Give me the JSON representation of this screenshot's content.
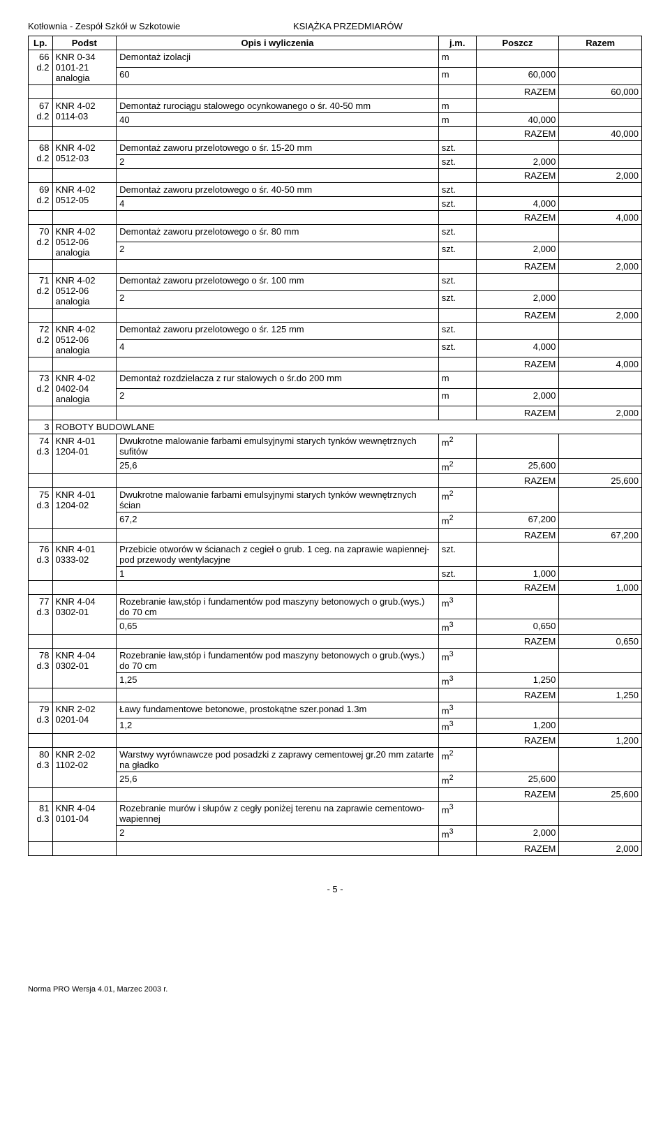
{
  "header": {
    "left": "Kotłownia - Zespół Szkół w Szkotowie",
    "right": "KSIĄŻKA PRZEDMIARÓW"
  },
  "columns": {
    "lp": "Lp.",
    "podst": "Podst",
    "opis": "Opis i wyliczenia",
    "jm": "j.m.",
    "poszcz": "Poszcz",
    "razem": "Razem"
  },
  "razem_label": "RAZEM",
  "section": {
    "num": "3",
    "title": "ROBOTY BUDOWLANE"
  },
  "rows": [
    {
      "lp": "66",
      "lp2": "d.2",
      "podst1": "KNR 0-34",
      "podst2": "0101-21",
      "podst3": "analogia",
      "opis": "Demontaż izolacji",
      "jm": "m",
      "calc_opis": "60",
      "calc_jm": "m",
      "calc_val": "60,000",
      "razem": "60,000"
    },
    {
      "lp": "67",
      "lp2": "d.2",
      "podst1": "KNR 4-02",
      "podst2": "0114-03",
      "opis": "Demontaż rurociągu stalowego ocynkowanego o śr. 40-50 mm",
      "jm": "m",
      "calc_opis": "40",
      "calc_jm": "m",
      "calc_val": "40,000",
      "razem": "40,000"
    },
    {
      "lp": "68",
      "lp2": "d.2",
      "podst1": "KNR 4-02",
      "podst2": "0512-03",
      "opis": "Demontaż zaworu przelotowego o śr. 15-20 mm",
      "jm": "szt.",
      "calc_opis": "2",
      "calc_jm": "szt.",
      "calc_val": "2,000",
      "razem": "2,000"
    },
    {
      "lp": "69",
      "lp2": "d.2",
      "podst1": "KNR 4-02",
      "podst2": "0512-05",
      "opis": "Demontaż zaworu przelotowego o śr. 40-50 mm",
      "jm": "szt.",
      "calc_opis": "4",
      "calc_jm": "szt.",
      "calc_val": "4,000",
      "razem": "4,000"
    },
    {
      "lp": "70",
      "lp2": "d.2",
      "podst1": "KNR 4-02",
      "podst2": "0512-06",
      "podst3": "analogia",
      "opis": "Demontaż zaworu przelotowego o śr. 80 mm",
      "jm": "szt.",
      "calc_opis": "2",
      "calc_jm": "szt.",
      "calc_val": "2,000",
      "razem": "2,000"
    },
    {
      "lp": "71",
      "lp2": "d.2",
      "podst1": "KNR 4-02",
      "podst2": "0512-06",
      "podst3": "analogia",
      "opis": "Demontaż zaworu przelotowego o śr. 100 mm",
      "jm": "szt.",
      "calc_opis": "2",
      "calc_jm": "szt.",
      "calc_val": "2,000",
      "razem": "2,000"
    },
    {
      "lp": "72",
      "lp2": "d.2",
      "podst1": "KNR 4-02",
      "podst2": "0512-06",
      "podst3": "analogia",
      "opis": "Demontaż zaworu przelotowego o śr. 125 mm",
      "jm": "szt.",
      "calc_opis": "4",
      "calc_jm": "szt.",
      "calc_val": "4,000",
      "razem": "4,000"
    },
    {
      "lp": "73",
      "lp2": "d.2",
      "podst1": "KNR 4-02",
      "podst2": "0402-04",
      "podst3": "analogia",
      "opis": "Demontaż rozdzielacza z rur stalowych o śr.do 200 mm",
      "jm": "m",
      "calc_opis": "2",
      "calc_jm": "m",
      "calc_val": "2,000",
      "razem": "2,000"
    },
    {
      "lp": "74",
      "lp2": "d.3",
      "podst1": "KNR 4-01",
      "podst2": "1204-01",
      "opis": "Dwukrotne malowanie farbami emulsyjnymi starych tynków wewnętrznych sufitów",
      "jm": "m2",
      "sup": true,
      "calc_opis": "25,6",
      "calc_jm": "m2",
      "calc_val": "25,600",
      "razem": "25,600",
      "section_before": true
    },
    {
      "lp": "75",
      "lp2": "d.3",
      "podst1": "KNR 4-01",
      "podst2": "1204-02",
      "opis": "Dwukrotne malowanie farbami emulsyjnymi starych tynków wewnętrznych ścian",
      "jm": "m2",
      "sup": true,
      "calc_opis": "67,2",
      "calc_jm": "m2",
      "calc_val": "67,200",
      "razem": "67,200"
    },
    {
      "lp": "76",
      "lp2": "d.3",
      "podst1": "KNR 4-01",
      "podst2": "0333-02",
      "opis": "Przebicie otworów w ścianach z cegieł o grub. 1 ceg. na zaprawie wapiennej- pod przewody wentylacyjne",
      "jm": "szt.",
      "calc_opis": "1",
      "calc_jm": "szt.",
      "calc_val": "1,000",
      "razem": "1,000"
    },
    {
      "lp": "77",
      "lp2": "d.3",
      "podst1": "KNR 4-04",
      "podst2": "0302-01",
      "opis": "Rozebranie ław,stóp i fundamentów pod maszyny betonowych o grub.(wys.) do 70 cm",
      "jm": "m3",
      "sup": true,
      "calc_opis": "0,65",
      "calc_jm": "m3",
      "calc_val": "0,650",
      "razem": "0,650"
    },
    {
      "lp": "78",
      "lp2": "d.3",
      "podst1": "KNR 4-04",
      "podst2": "0302-01",
      "opis": "Rozebranie ław,stóp i fundamentów pod maszyny betonowych o grub.(wys.) do 70 cm",
      "jm": "m3",
      "sup": true,
      "calc_opis": "1,25",
      "calc_jm": "m3",
      "calc_val": "1,250",
      "razem": "1,250"
    },
    {
      "lp": "79",
      "lp2": "d.3",
      "podst1": "KNR 2-02",
      "podst2": "0201-04",
      "opis": "Ławy fundamentowe betonowe, prostokątne szer.ponad 1.3m",
      "jm": "m3",
      "sup": true,
      "calc_opis": "1,2",
      "calc_jm": "m3",
      "calc_val": "1,200",
      "razem": "1,200"
    },
    {
      "lp": "80",
      "lp2": "d.3",
      "podst1": "KNR 2-02",
      "podst2": "1102-02",
      "opis": "Warstwy wyrównawcze pod posadzki z zaprawy cementowej gr.20 mm zatarte na gładko",
      "jm": "m2",
      "sup": true,
      "calc_opis": "25,6",
      "calc_jm": "m2",
      "calc_val": "25,600",
      "razem": "25,600"
    },
    {
      "lp": "81",
      "lp2": "d.3",
      "podst1": "KNR 4-04",
      "podst2": "0101-04",
      "opis": "Rozebranie murów i słupów z cegły poniżej terenu na zaprawie cementowo-wapiennej",
      "jm": "m3",
      "sup": true,
      "calc_opis": "2",
      "calc_jm": "m3",
      "calc_val": "2,000",
      "razem": "2,000"
    }
  ],
  "page_num": "- 5 -",
  "footer": "Norma PRO Wersja 4.01, Marzec 2003 r.",
  "style": {
    "text_color": "#000000",
    "bg_color": "#ffffff",
    "border_color": "#000000",
    "font_size_body": 13,
    "font_size_footer": 11
  }
}
